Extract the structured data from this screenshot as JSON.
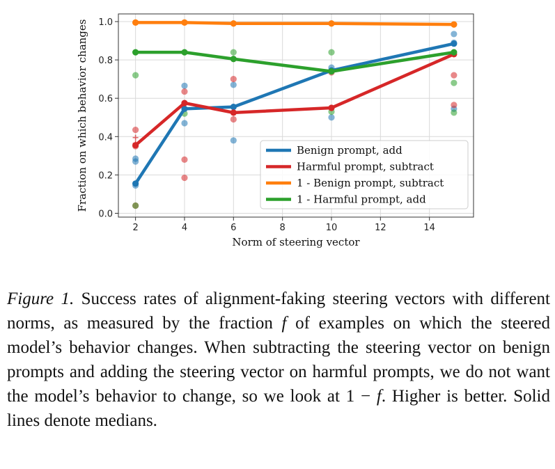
{
  "chart_data": {
    "type": "line",
    "xlabel": "Norm of steering vector",
    "ylabel": "Fraction on which behavior changes",
    "xlim": [
      1.3,
      15.8
    ],
    "ylim": [
      -0.02,
      1.04
    ],
    "xticks": [
      2,
      4,
      6,
      8,
      10,
      12,
      14
    ],
    "yticks": [
      0.0,
      0.2,
      0.4,
      0.6,
      0.8,
      1.0
    ],
    "xtick_labels": [
      "2",
      "4",
      "6",
      "8",
      "10",
      "12",
      "14"
    ],
    "ytick_labels": [
      "0.0",
      "0.2",
      "0.4",
      "0.6",
      "0.8",
      "1.0"
    ],
    "grid": true,
    "legend_position": "lower-right",
    "series": [
      {
        "name": "Benign prompt, add",
        "color": "#1f77b4",
        "x": [
          2,
          4,
          6,
          10,
          15
        ],
        "median": [
          0.155,
          0.545,
          0.555,
          0.745,
          0.885
        ],
        "scatter_x": [
          2,
          2,
          2,
          4,
          4,
          6,
          6,
          10,
          10,
          15,
          15,
          15
        ],
        "scatter_y": [
          0.145,
          0.27,
          0.285,
          0.47,
          0.665,
          0.38,
          0.67,
          0.5,
          0.76,
          0.935,
          0.89,
          0.545
        ]
      },
      {
        "name": "Harmful prompt, subtract",
        "color": "#d62728",
        "x": [
          2,
          4,
          6,
          10,
          15
        ],
        "median": [
          0.355,
          0.575,
          0.525,
          0.55,
          0.83
        ],
        "scatter_x": [
          2,
          2,
          2,
          4,
          4,
          4,
          6,
          6,
          10,
          15,
          15
        ],
        "scatter_y": [
          0.04,
          0.435,
          0.35,
          0.185,
          0.28,
          0.635,
          0.49,
          0.7,
          0.735,
          0.72,
          0.565
        ],
        "plus_marker_x": [
          2,
          2
        ],
        "plus_marker_y": [
          0.365,
          0.395
        ]
      },
      {
        "name": "1 - Benign prompt, subtract",
        "color": "#ff7f0e",
        "x": [
          2,
          4,
          6,
          10,
          15
        ],
        "median": [
          0.995,
          0.995,
          0.99,
          0.99,
          0.985
        ],
        "scatter_x": [
          2,
          4,
          6,
          10,
          15
        ],
        "scatter_y": [
          0.995,
          0.995,
          0.99,
          0.99,
          0.985
        ]
      },
      {
        "name": "1 - Harmful prompt, add",
        "color": "#2ca02c",
        "x": [
          2,
          4,
          6,
          10,
          15
        ],
        "median": [
          0.84,
          0.84,
          0.805,
          0.74,
          0.84
        ],
        "scatter_x": [
          2,
          2,
          4,
          6,
          10,
          10,
          15,
          15
        ],
        "scatter_y": [
          0.72,
          0.04,
          0.52,
          0.84,
          0.84,
          0.53,
          0.68,
          0.525
        ]
      }
    ]
  },
  "caption": {
    "label": "Figure 1.",
    "text_1": " Success rates of alignment-faking steering vectors with different norms, as measured by the fraction ",
    "f1": "f",
    "text_2": " of examples on which the steered model’s behavior changes. When subtracting the steering vector on benign prompts and adding the steering vector on harmful prompts, we do not want the model’s behavior to change, so we look at 1 − ",
    "f2": "f",
    "text_3": ". Higher is better. Solid lines denote medians."
  }
}
